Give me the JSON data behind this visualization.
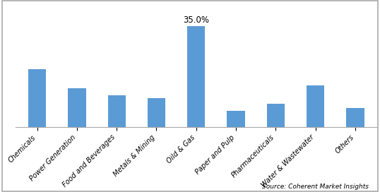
{
  "categories": [
    "Chemicals",
    "Power Generation",
    "Food and Beverages",
    "Metals & Mining",
    "Oild & Gas",
    "Paper and Pulp",
    "Pharmaceuticals",
    "Water & Wastewater",
    "Others"
  ],
  "values": [
    20.0,
    13.5,
    11.0,
    10.0,
    35.0,
    5.5,
    8.0,
    14.5,
    6.5
  ],
  "bar_color": "#5B9BD5",
  "annotate_index": 4,
  "annotate_label": "35.0%",
  "source_text": "Source: Coherent Market Insights",
  "ylim": [
    0,
    43
  ],
  "background_color": "#ffffff",
  "border_color": "#aaaaaa",
  "label_fontsize": 7.0,
  "annotation_fontsize": 8.5,
  "bar_width": 0.45
}
